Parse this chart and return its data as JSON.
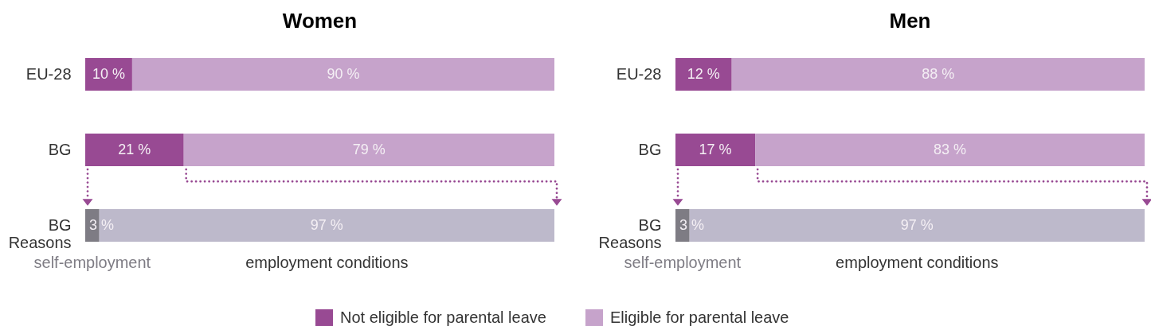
{
  "chart_data": [
    {
      "type": "bar",
      "title": "Women",
      "orientation": "horizontal",
      "stacked": true,
      "categories": [
        "EU-28",
        "BG",
        "BG Reasons"
      ],
      "series": [
        {
          "name": "Not eligible for parental leave",
          "color": "#984a93",
          "values": [
            10,
            21,
            null
          ],
          "value_labels": [
            "10 %",
            "21 %",
            null
          ]
        },
        {
          "name": "Eligible for parental leave",
          "color": "#c6a3cb",
          "values": [
            90,
            79,
            null
          ],
          "value_labels": [
            "90 %",
            "79 %",
            null
          ]
        },
        {
          "name": "self-employment",
          "color": "#7e7c84",
          "values": [
            null,
            null,
            3
          ],
          "value_labels": [
            null,
            null,
            "3 %"
          ]
        },
        {
          "name": "employment conditions",
          "color": "#bdb9cb",
          "values": [
            null,
            null,
            97
          ],
          "value_labels": [
            null,
            null,
            "97 %"
          ]
        }
      ],
      "legend": "bottom"
    },
    {
      "type": "bar",
      "title": "Men",
      "orientation": "horizontal",
      "stacked": true,
      "categories": [
        "EU-28",
        "BG",
        "BG Reasons"
      ],
      "series": [
        {
          "name": "Not eligible for parental leave",
          "color": "#984a93",
          "values": [
            12,
            17,
            null
          ],
          "value_labels": [
            "12 %",
            "17 %",
            null
          ]
        },
        {
          "name": "Eligible for parental leave",
          "color": "#c6a3cb",
          "values": [
            88,
            83,
            null
          ],
          "value_labels": [
            "88 %",
            "83 %",
            null
          ]
        },
        {
          "name": "self-employment",
          "color": "#7e7c84",
          "values": [
            null,
            null,
            3
          ],
          "value_labels": [
            null,
            null,
            "3 %"
          ]
        },
        {
          "name": "employment conditions",
          "color": "#bdb9cb",
          "values": [
            null,
            null,
            97
          ],
          "value_labels": [
            null,
            null,
            "97 %"
          ]
        }
      ],
      "legend": "bottom"
    }
  ]
}
